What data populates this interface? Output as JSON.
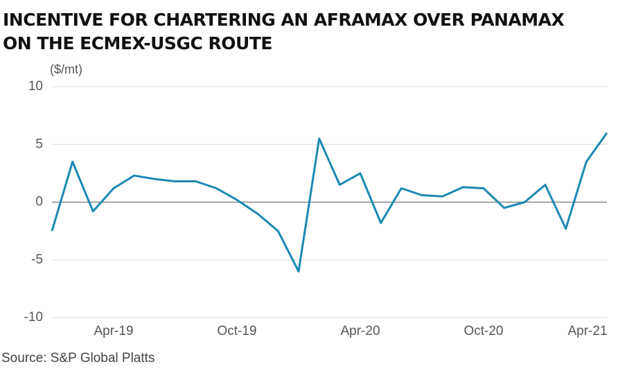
{
  "chart_data": {
    "type": "line",
    "title_lines": [
      "INCENTIVE FOR CHARTERING AN AFRAMAX OVER PANAMAX",
      "ON THE ECMEX-USGC ROUTE"
    ],
    "y_label": "($/mt)",
    "source": "Source: S&P Global Platts",
    "x": [
      "Jan-19",
      "Feb-19",
      "Mar-19",
      "Apr-19",
      "May-19",
      "Jun-19",
      "Jul-19",
      "Aug-19",
      "Sep-19",
      "Oct-19",
      "Nov-19",
      "Dec-19",
      "Jan-20",
      "Feb-20",
      "Mar-20",
      "Apr-20",
      "May-20",
      "Jun-20",
      "Jul-20",
      "Aug-20",
      "Sep-20",
      "Oct-20",
      "Nov-20",
      "Dec-20",
      "Jan-21",
      "Feb-21",
      "Mar-21",
      "Apr-21"
    ],
    "series": [
      {
        "name": "Incentive",
        "color": "#1b87b3",
        "values": [
          -2.5,
          3.5,
          -0.8,
          1.2,
          2.3,
          2.0,
          1.8,
          1.8,
          1.2,
          0.2,
          -1.0,
          -2.5,
          -6.0,
          5.5,
          1.5,
          2.5,
          -1.8,
          1.2,
          0.6,
          0.5,
          1.3,
          1.2,
          -0.5,
          0.0,
          1.5,
          -2.3,
          3.5,
          6.0
        ]
      }
    ],
    "xticks": [
      "Apr-19",
      "Oct-19",
      "Apr-20",
      "Oct-20",
      "Apr-21"
    ],
    "ylim": [
      -10,
      10
    ],
    "yticks": [
      -10,
      -5,
      0,
      5,
      10
    ],
    "grid": true
  }
}
